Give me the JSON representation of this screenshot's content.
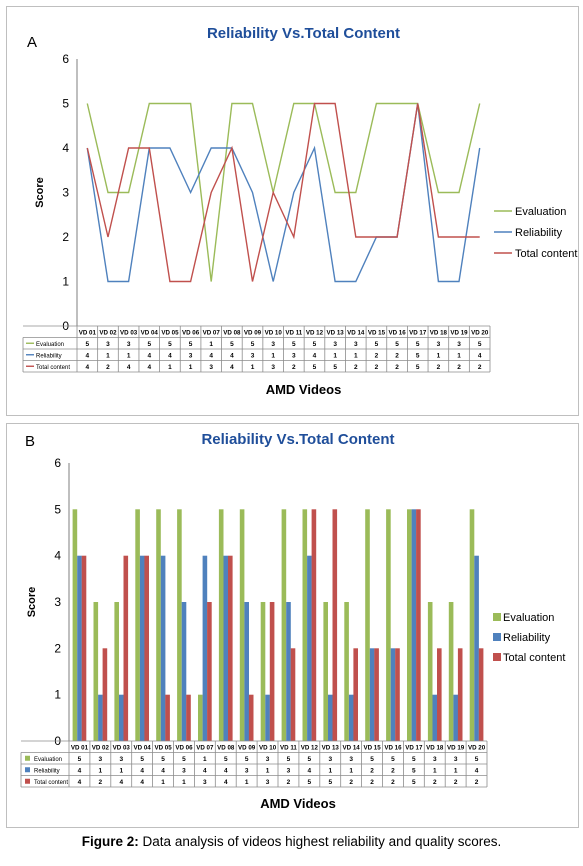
{
  "caption": {
    "label": "Figure 2:",
    "text": "Data analysis of videos highest reliability and quality scores."
  },
  "colors": {
    "evaluation": "#9bbb59",
    "reliability": "#4f81bd",
    "total": "#c0504d",
    "title": "#1f4e9a"
  },
  "chart_data": [
    {
      "type": "line",
      "panel_label": "A",
      "title": "Reliability Vs.Total Content",
      "xlabel": "AMD Videos",
      "ylabel": "Score",
      "ylim": [
        0,
        6
      ],
      "yticks": [
        "0",
        "1",
        "2",
        "3",
        "4",
        "5",
        "6"
      ],
      "legend_position": "right",
      "grid": false,
      "categories": [
        "VD 01",
        "VD 02",
        "VD 03",
        "VD 04",
        "VD 05",
        "VD 06",
        "VD 07",
        "VD 08",
        "VD 09",
        "VD 10",
        "VD 11",
        "VD 12",
        "VD 13",
        "VD 14",
        "VD 15",
        "VD 16",
        "VD 17",
        "VD 18",
        "VD 19",
        "VD 20"
      ],
      "series": [
        {
          "name": "Evaluation",
          "key": "evaluation",
          "values": [
            5,
            3,
            3,
            5,
            5,
            5,
            1,
            5,
            5,
            3,
            5,
            5,
            3,
            3,
            5,
            5,
            5,
            3,
            3,
            5
          ]
        },
        {
          "name": "Reliability",
          "key": "reliability",
          "values": [
            4,
            1,
            1,
            4,
            4,
            3,
            4,
            4,
            3,
            1,
            3,
            4,
            1,
            1,
            2,
            2,
            5,
            1,
            1,
            4
          ]
        },
        {
          "name": "Total content",
          "key": "total",
          "values": [
            4,
            2,
            4,
            4,
            1,
            1,
            3,
            4,
            1,
            3,
            2,
            5,
            5,
            2,
            2,
            2,
            5,
            2,
            2,
            2
          ]
        }
      ]
    },
    {
      "type": "bar",
      "panel_label": "B",
      "title": "Reliability Vs.Total Content",
      "xlabel": "AMD Videos",
      "ylabel": "Score",
      "ylim": [
        0,
        6
      ],
      "yticks": [
        "0",
        "1",
        "2",
        "3",
        "4",
        "5",
        "6"
      ],
      "legend_position": "right",
      "grid": false,
      "categories": [
        "VD 01",
        "VD 02",
        "VD 03",
        "VD 04",
        "VD 05",
        "VD 06",
        "VD 07",
        "VD 08",
        "VD 09",
        "VD 10",
        "VD 11",
        "VD 12",
        "VD 13",
        "VD 14",
        "VD 15",
        "VD 16",
        "VD 17",
        "VD 18",
        "VD 19",
        "VD 20"
      ],
      "series": [
        {
          "name": "Evaluation",
          "key": "evaluation",
          "values": [
            5,
            3,
            3,
            5,
            5,
            5,
            1,
            5,
            5,
            3,
            5,
            5,
            3,
            3,
            5,
            5,
            5,
            3,
            3,
            5
          ]
        },
        {
          "name": "Reliability",
          "key": "reliability",
          "values": [
            4,
            1,
            1,
            4,
            4,
            3,
            4,
            4,
            3,
            1,
            3,
            4,
            1,
            1,
            2,
            2,
            5,
            1,
            1,
            4
          ]
        },
        {
          "name": "Total content",
          "key": "total",
          "values": [
            4,
            2,
            4,
            4,
            1,
            1,
            3,
            4,
            1,
            3,
            2,
            5,
            5,
            2,
            2,
            2,
            5,
            2,
            2,
            2
          ]
        }
      ]
    }
  ]
}
